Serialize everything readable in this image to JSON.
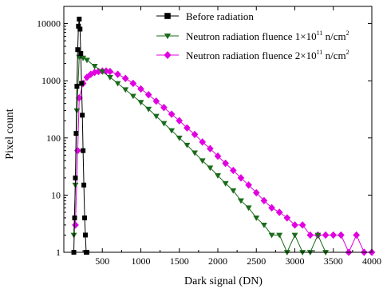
{
  "chart_data": {
    "type": "scatter",
    "xlabel": "Dark signal (DN)",
    "ylabel": "Pixel count",
    "xlim": [
      0,
      4000
    ],
    "ylim": [
      1,
      20000
    ],
    "yscale": "log",
    "grid": false,
    "legend_position": "top-right",
    "x_ticks": [
      500,
      1000,
      1500,
      2000,
      2500,
      3000,
      3500,
      4000
    ],
    "x_tick_labels": [
      "500",
      "1000",
      "1500",
      "2000",
      "2500",
      "3000",
      "3500",
      "4000"
    ],
    "y_ticks": [
      1,
      10,
      100,
      1000,
      10000
    ],
    "y_tick_labels": [
      "1",
      "10",
      "100",
      "1000",
      "10000"
    ],
    "legend": [
      {
        "prefix": "Before radiation",
        "sup": "",
        "suffix": ""
      },
      {
        "prefix": "Neutron radiation fluence  1×10",
        "sup": "11",
        "suffix": " n/cm",
        "sup2": "2"
      },
      {
        "prefix": "Neutron radiation fluence  2×10",
        "sup": "11",
        "suffix": " n/cm",
        "sup2": "2"
      }
    ],
    "series": [
      {
        "name": "Before radiation",
        "color": "#000000",
        "marker": "square",
        "x": [
          130,
          140,
          150,
          160,
          170,
          180,
          190,
          200,
          210,
          220,
          230,
          240,
          250,
          260,
          270,
          280,
          290,
          300
        ],
        "y": [
          1,
          4,
          20,
          120,
          800,
          3500,
          9000,
          12000,
          8000,
          3000,
          900,
          250,
          60,
          15,
          4,
          2,
          1,
          1
        ]
      },
      {
        "name": "Neutron radiation fluence 1×10^11 n/cm^2",
        "color": "#1a6b1a",
        "marker": "triangle-down",
        "x": [
          130,
          150,
          170,
          200,
          250,
          300,
          400,
          500,
          600,
          700,
          800,
          900,
          1000,
          1100,
          1200,
          1300,
          1400,
          1500,
          1600,
          1700,
          1800,
          1900,
          2000,
          2100,
          2200,
          2300,
          2400,
          2500,
          2600,
          2700,
          2800,
          2900,
          3000,
          3100,
          3200,
          3300,
          3400
        ],
        "y": [
          2,
          15,
          300,
          2600,
          2500,
          2300,
          1800,
          1450,
          1150,
          900,
          700,
          540,
          420,
          320,
          240,
          180,
          135,
          100,
          75,
          55,
          40,
          30,
          22,
          16,
          12,
          8,
          6,
          4,
          3,
          2,
          2,
          1,
          2,
          1,
          1,
          2,
          1
        ]
      },
      {
        "name": "Neutron radiation fluence 2×10^11 n/cm^2",
        "color": "#e000e0",
        "marker": "diamond",
        "x": [
          150,
          180,
          200,
          250,
          300,
          350,
          400,
          450,
          500,
          550,
          600,
          700,
          800,
          900,
          1000,
          1100,
          1200,
          1300,
          1400,
          1500,
          1600,
          1700,
          1800,
          1900,
          2000,
          2100,
          2200,
          2300,
          2400,
          2500,
          2600,
          2700,
          2800,
          2900,
          3000,
          3100,
          3200,
          3300,
          3400,
          3500,
          3600,
          3700,
          3800,
          3900,
          4000
        ],
        "y": [
          3,
          60,
          500,
          900,
          1150,
          1300,
          1400,
          1450,
          1480,
          1480,
          1450,
          1300,
          1100,
          900,
          720,
          570,
          440,
          340,
          260,
          200,
          150,
          115,
          85,
          65,
          48,
          36,
          27,
          20,
          15,
          11,
          8,
          6,
          5,
          4,
          3,
          3,
          2,
          2,
          2,
          2,
          2,
          1,
          2,
          1,
          1
        ]
      }
    ]
  }
}
